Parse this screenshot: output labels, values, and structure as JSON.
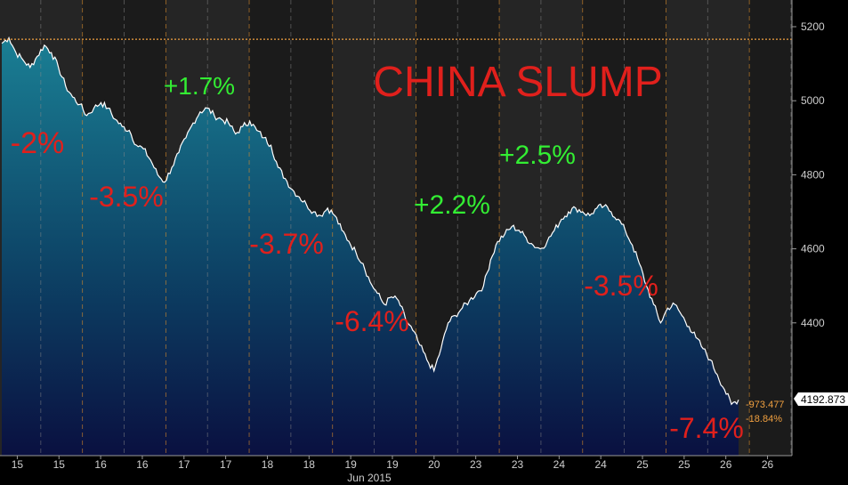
{
  "chart_data": {
    "type": "area",
    "title": "CHINA SLUMP",
    "subtitle": "",
    "xlabel": "Jun 2015",
    "ylabel": "",
    "ylim": [
      4050,
      5250
    ],
    "y_ticks": [
      4400,
      4600,
      4800,
      5000,
      5200
    ],
    "x_tick_labels": [
      "15",
      "15",
      "16",
      "16",
      "17",
      "17",
      "18",
      "18",
      "19",
      "19",
      "20",
      "23",
      "23",
      "24",
      "24",
      "25",
      "25",
      "26",
      "26"
    ],
    "x_month_label": "Jun 2015",
    "grid": true,
    "reference_line": 5166,
    "last_value": "4192.873",
    "change_value": "-973.477",
    "change_pct": "-18.84%",
    "series": [
      {
        "values": [
          5155,
          5170,
          5130,
          5110,
          5090,
          5120,
          5150,
          5130,
          5090,
          5040,
          5010,
          4990,
          4960,
          4980,
          4995,
          4980,
          4950,
          4930,
          4920,
          4880,
          4870,
          4840,
          4800,
          4780,
          4820,
          4860,
          4900,
          4940,
          4970,
          4980,
          4960,
          4950,
          4940,
          4910,
          4930,
          4945,
          4920,
          4900,
          4880,
          4820,
          4790,
          4760,
          4740,
          4720,
          4700,
          4690,
          4710,
          4690,
          4650,
          4620,
          4590,
          4560,
          4510,
          4480,
          4450,
          4470,
          4460,
          4410,
          4380,
          4340,
          4300,
          4270,
          4330,
          4400,
          4420,
          4440,
          4460,
          4480,
          4500,
          4570,
          4620,
          4640,
          4660,
          4650,
          4630,
          4610,
          4600,
          4620,
          4650,
          4680,
          4700,
          4710,
          4700,
          4690,
          4710,
          4715,
          4700,
          4680,
          4650,
          4610,
          4560,
          4500,
          4450,
          4400,
          4440,
          4450,
          4420,
          4390,
          4360,
          4330,
          4300,
          4260,
          4220,
          4180,
          4192
        ],
        "color": "#ffffff"
      }
    ],
    "annotations": [
      {
        "text": "-2%",
        "color": "#e0201c"
      },
      {
        "text": "+1.7%",
        "color": "#33ee33"
      },
      {
        "text": "-3.5%",
        "color": "#e0201c"
      },
      {
        "text": "-3.7%",
        "color": "#e0201c"
      },
      {
        "text": "-6.4%",
        "color": "#e0201c"
      },
      {
        "text": "+2.2%",
        "color": "#33ee33"
      },
      {
        "text": "+2.5%",
        "color": "#33ee33"
      },
      {
        "text": "-3.5%",
        "color": "#e0201c"
      },
      {
        "text": "-7.4%",
        "color": "#e0201c"
      }
    ],
    "colors": {
      "fill_top": "#1a7f94",
      "fill_bottom": "#0a1a4a",
      "reference_line": "#f0a040",
      "change_text": "#f0a040",
      "title": "#e0201c"
    }
  }
}
